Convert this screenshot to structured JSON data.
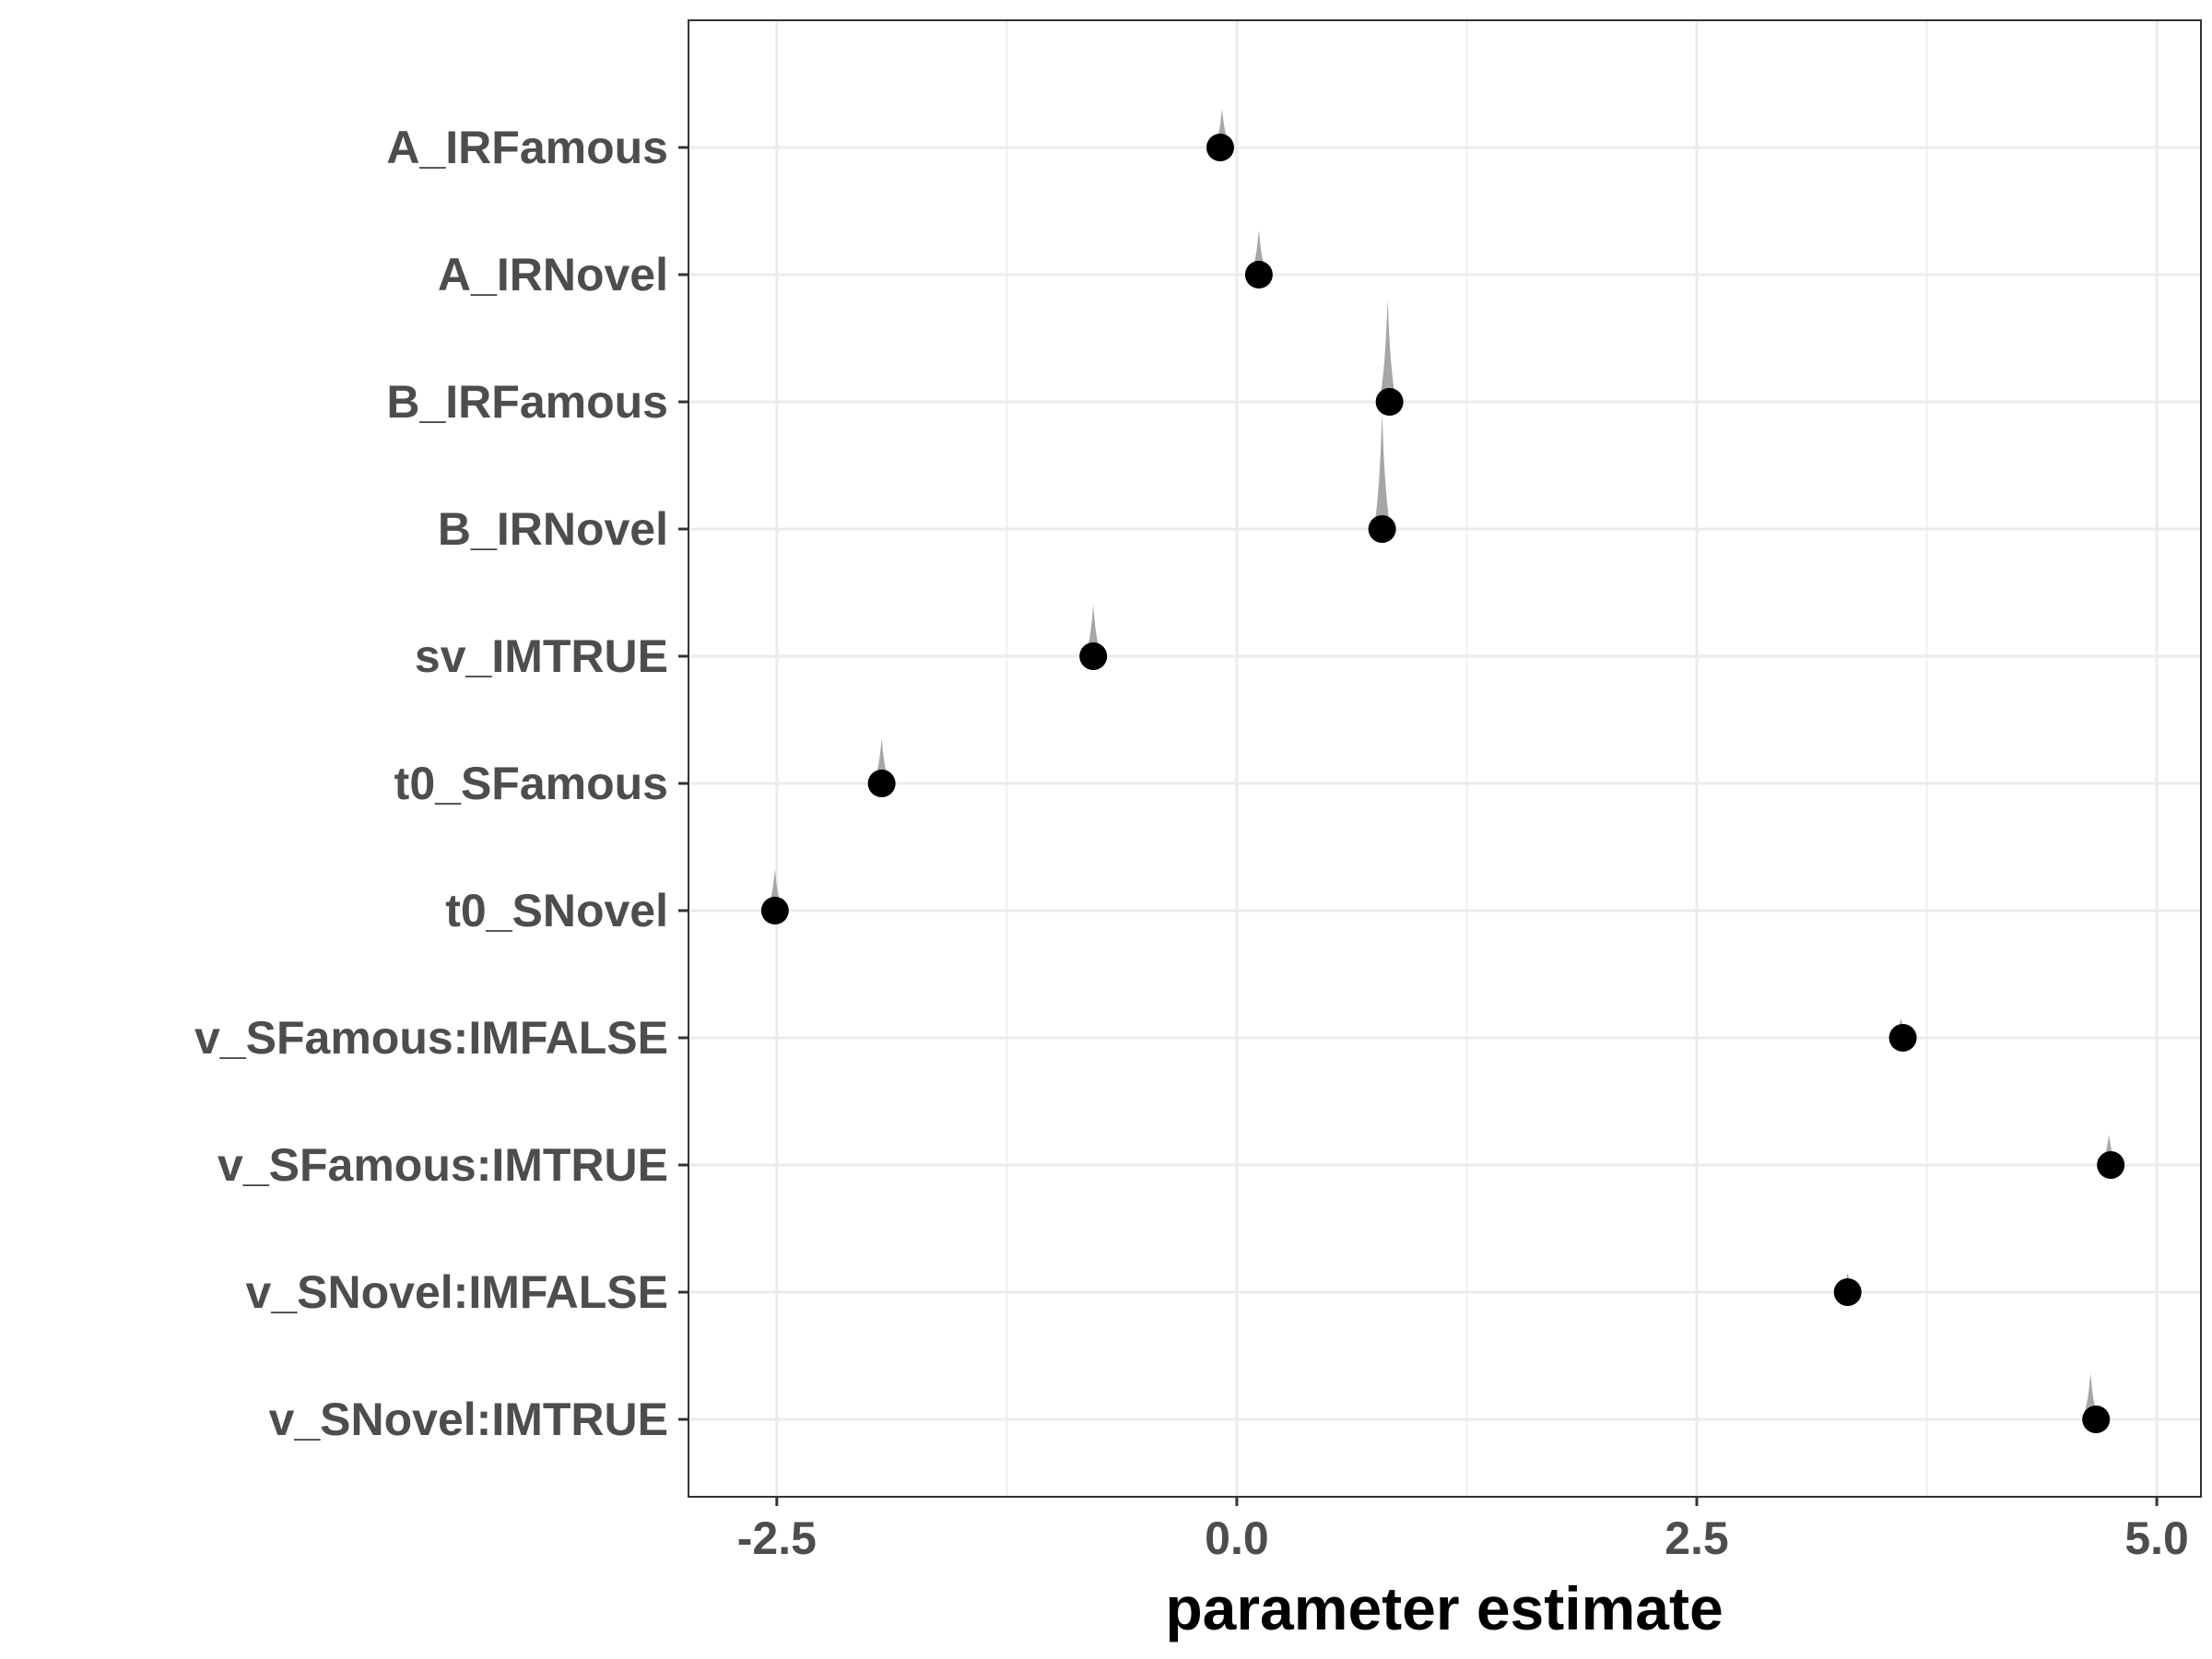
{
  "chart_data": {
    "type": "scatter",
    "title": "",
    "xlabel": "parameter estimate",
    "ylabel": "",
    "xlim": [
      -2.98,
      5.24
    ],
    "x_ticks": [
      "-2.5",
      "0.0",
      "2.5",
      "5.0"
    ],
    "x_tick_values": [
      -2.5,
      0.0,
      2.5,
      5.0
    ],
    "grid": true,
    "legend": "none",
    "categories": [
      "A_IRFamous",
      "A_IRNovel",
      "B_IRFamous",
      "B_IRNovel",
      "sv_IMTRUE",
      "t0_SFamous",
      "t0_SNovel",
      "v_SFamous:IMFALSE",
      "v_SFamous:IMTRUE",
      "v_SNovel:IMFALSE",
      "v_SNovel:IMTRUE"
    ],
    "estimates": [
      -0.09,
      0.12,
      0.83,
      0.79,
      -0.78,
      -1.93,
      -2.51,
      3.62,
      4.75,
      3.32,
      4.67
    ],
    "distribution_tops": [
      -0.08,
      0.12,
      0.82,
      0.79,
      -0.78,
      -1.93,
      -2.51,
      3.61,
      4.74,
      3.32,
      4.64
    ],
    "distribution_heights": [
      0.3,
      0.35,
      0.8,
      0.9,
      0.4,
      0.35,
      0.32,
      0.15,
      0.24,
      0.15,
      0.36
    ],
    "colors": {
      "point": "#000000",
      "density": "#a6a6a6",
      "grid": "#ebebeb",
      "tick_label": "#4d4d4d"
    }
  }
}
